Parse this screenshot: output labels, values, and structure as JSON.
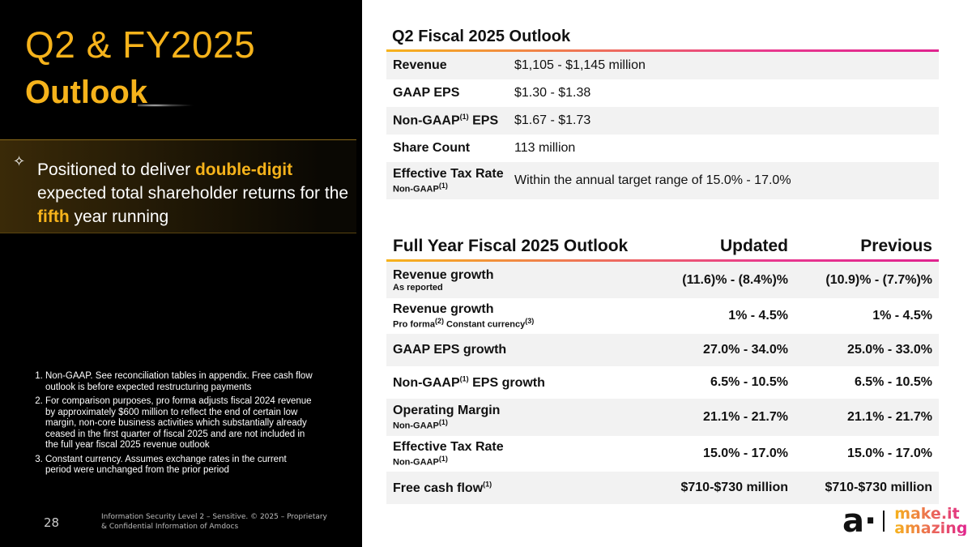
{
  "left": {
    "title_line1": "Q2 & FY2025",
    "title_line2": "Outlook",
    "positioned": {
      "pre": "Positioned to deliver ",
      "hl1": "double-digit",
      "mid": " expected total shareholder returns for the ",
      "hl2": "fifth",
      "post": " year running"
    },
    "notes": [
      "Non-GAAP. See reconciliation tables in appendix. Free cash flow outlook is before expected restructuring payments",
      "For comparison purposes, pro forma adjusts fiscal 2024 revenue by approximately $600 million to reflect the end of certain low margin, non-core business activities which substantially already ceased in the first quarter of fiscal 2025 and are not included in the full year fiscal 2025 revenue outlook",
      "Constant currency. Assumes exchange rates in the current period were unchanged from the prior period"
    ],
    "page_number": "28",
    "confidential": "Information Security Level 2 – Sensitive. © 2025 – Proprietary & Confidential Information of Amdocs"
  },
  "q2": {
    "title": "Q2 Fiscal 2025 Outlook",
    "rows": [
      {
        "label": "Revenue",
        "value": "$1,105 - $1,145 million"
      },
      {
        "label": "GAAP EPS",
        "value": "$1.30 - $1.38"
      },
      {
        "label": "Non-GAAP",
        "sup": "(1)",
        "label2": " EPS",
        "value": "$1.67 - $1.73"
      },
      {
        "label": "Share Count",
        "value": "113 million"
      },
      {
        "label": "Effective Tax Rate",
        "sub": "Non-GAAP",
        "subsup": "(1)",
        "value": "Within the annual target range of 15.0% - 17.0%"
      }
    ]
  },
  "fy": {
    "title": "Full Year Fiscal 2025 Outlook",
    "col_updated": "Updated",
    "col_previous": "Previous",
    "rows": [
      {
        "label": "Revenue growth",
        "sub": "As reported",
        "updated": "(11.6)% - (8.4%)%",
        "previous": "(10.9)% - (7.7%)%"
      },
      {
        "label": "Revenue growth",
        "sub_a": "Pro forma",
        "sup_a": "(2)",
        "sub_b": " Constant currency",
        "sup_b": "(3)",
        "updated": "1% - 4.5%",
        "previous": "1% - 4.5%"
      },
      {
        "label": "GAAP EPS growth",
        "updated": "27.0% - 34.0%",
        "previous": "25.0% - 33.0%"
      },
      {
        "label": "Non-GAAP",
        "sup": "(1)",
        "label2": " EPS growth",
        "updated": "6.5% - 10.5%",
        "previous": "6.5% - 10.5%"
      },
      {
        "label": "Operating Margin",
        "sub": "Non-GAAP",
        "subsup": "(1)",
        "updated": "21.1% - 21.7%",
        "previous": "21.1% - 21.7%"
      },
      {
        "label": "Effective Tax Rate",
        "sub": "Non-GAAP",
        "subsup": "(1)",
        "updated": "15.0% - 17.0%",
        "previous": "15.0% - 17.0%"
      },
      {
        "label": "Free cash flow",
        "sup": "(1)",
        "updated": "$710-$730 million",
        "previous": "$710-$730 million"
      }
    ]
  },
  "logo": {
    "mark": "a·",
    "tagline1": "make.it",
    "tagline2": "amazing"
  }
}
